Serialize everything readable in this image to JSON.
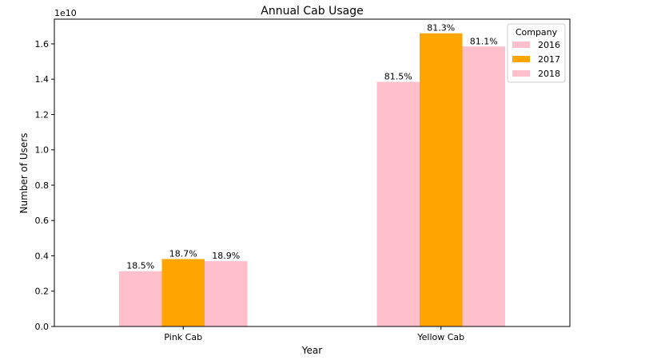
{
  "chart_data": {
    "type": "bar",
    "title": "Annual Cab Usage",
    "xlabel": "Year",
    "ylabel": "Number of Users",
    "y_offset_label": "1e10",
    "y_scale": 10000000000,
    "ylim": [
      0,
      1.74
    ],
    "yticks": [
      0.0,
      0.2,
      0.4,
      0.6,
      0.8,
      1.0,
      1.2,
      1.4,
      1.6
    ],
    "ytick_labels": [
      "0.0",
      "0.2",
      "0.4",
      "0.6",
      "0.8",
      "1.0",
      "1.2",
      "1.4",
      "1.6"
    ],
    "categories": [
      "Pink Cab",
      "Yellow Cab"
    ],
    "legend": {
      "title": "Company",
      "placement": "top-right"
    },
    "series": [
      {
        "name": "2016",
        "color": "#FFC0CB",
        "values": [
          0.313,
          1.385
        ],
        "labels": [
          "18.5%",
          "81.5%"
        ]
      },
      {
        "name": "2017",
        "color": "#FFA500",
        "values": [
          0.382,
          1.66
        ],
        "labels": [
          "18.7%",
          "81.3%"
        ]
      },
      {
        "name": "2018",
        "color": "#FFC0CB",
        "values": [
          0.37,
          1.585
        ],
        "labels": [
          "18.9%",
          "81.1%"
        ]
      }
    ],
    "grid": false
  }
}
